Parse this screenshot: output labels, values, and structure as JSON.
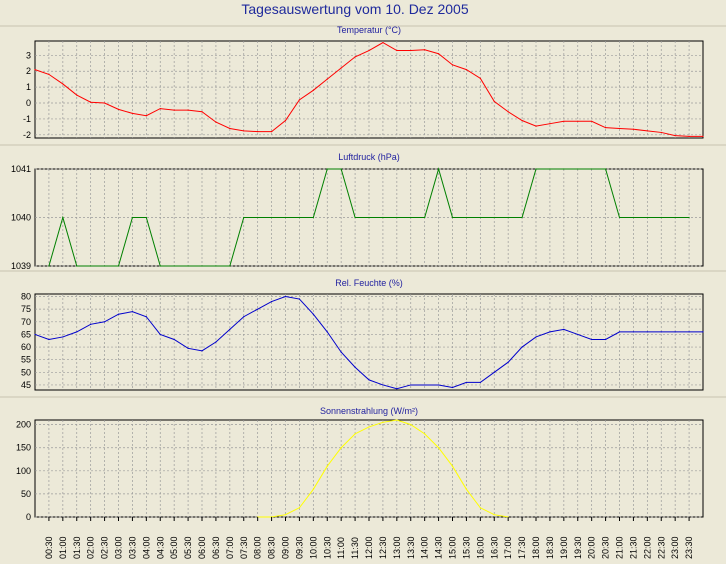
{
  "title": "Tagesauswertung vom 10. Dez 2005",
  "time_labels": [
    "00:30",
    "01:00",
    "01:30",
    "02:00",
    "02:30",
    "03:00",
    "03:30",
    "04:00",
    "04:30",
    "05:00",
    "05:30",
    "06:00",
    "06:30",
    "07:00",
    "07:30",
    "08:00",
    "08:30",
    "09:00",
    "09:30",
    "10:00",
    "10:30",
    "11:00",
    "11:30",
    "12:00",
    "12:30",
    "13:00",
    "13:30",
    "14:00",
    "14:30",
    "15:00",
    "15:30",
    "16:00",
    "16:30",
    "17:00",
    "17:30",
    "18:00",
    "18:30",
    "19:00",
    "19:30",
    "20:00",
    "20:30",
    "21:00",
    "21:30",
    "22:00",
    "22:30",
    "23:00",
    "23:30"
  ],
  "chart_data": [
    {
      "type": "line",
      "title": "Temperatur (°C)",
      "ylim": [
        -2.2,
        3.9
      ],
      "yticks": [
        3,
        2,
        1,
        0,
        -1,
        -2
      ],
      "color": "#ff0000",
      "x": [
        "00:00",
        "00:30",
        "01:00",
        "01:30",
        "02:00",
        "02:30",
        "03:00",
        "03:30",
        "04:00",
        "04:30",
        "05:00",
        "05:30",
        "06:00",
        "06:30",
        "07:00",
        "07:30",
        "08:00",
        "08:30",
        "09:00",
        "09:30",
        "10:00",
        "10:30",
        "11:00",
        "11:30",
        "12:00",
        "12:30",
        "13:00",
        "13:30",
        "14:00",
        "14:30",
        "15:00",
        "15:30",
        "16:00",
        "16:30",
        "17:00",
        "17:30",
        "18:00",
        "18:30",
        "19:00",
        "19:30",
        "20:00",
        "20:30",
        "21:00",
        "21:30",
        "22:00",
        "22:30",
        "23:00",
        "23:30",
        "24:00"
      ],
      "values": [
        2.1,
        1.8,
        1.2,
        0.5,
        0.05,
        0.0,
        -0.4,
        -0.65,
        -0.8,
        -0.35,
        -0.45,
        -0.45,
        -0.55,
        -1.2,
        -1.6,
        -1.75,
        -1.8,
        -1.8,
        -1.1,
        0.2,
        0.8,
        1.5,
        2.2,
        2.9,
        3.3,
        3.8,
        3.3,
        3.3,
        3.35,
        3.1,
        2.4,
        2.1,
        1.55,
        0.1,
        -0.55,
        -1.1,
        -1.45,
        -1.3,
        -1.15,
        -1.15,
        -1.15,
        -1.55,
        -1.6,
        -1.65,
        -1.75,
        -1.85,
        -2.05,
        -2.1,
        -2.1
      ]
    },
    {
      "type": "line",
      "title": "Luftdruck (hPa)",
      "ylim": [
        1039,
        1041
      ],
      "yticks": [
        1041,
        1040,
        1039
      ],
      "color": "#008000",
      "x": [
        "00:30",
        "01:00",
        "01:30",
        "02:00",
        "02:30",
        "03:00",
        "03:30",
        "04:00",
        "04:30",
        "05:00",
        "05:30",
        "06:00",
        "06:30",
        "07:00",
        "07:30",
        "08:00",
        "08:30",
        "09:00",
        "09:30",
        "10:00",
        "10:30",
        "11:00",
        "11:30",
        "12:00",
        "12:30",
        "13:00",
        "13:30",
        "14:00",
        "14:30",
        "15:00",
        "15:30",
        "16:00",
        "16:30",
        "17:00",
        "17:30",
        "18:00",
        "18:30",
        "19:00",
        "19:30",
        "20:00",
        "20:30",
        "21:00",
        "21:30",
        "22:00",
        "22:30",
        "23:00",
        "23:30"
      ],
      "values": [
        1039,
        1040,
        1039,
        1039,
        1039,
        1039,
        1040,
        1040,
        1039,
        1039,
        1039,
        1039,
        1039,
        1039,
        1040,
        1040,
        1040,
        1040,
        1040,
        1040,
        1041,
        1041,
        1040,
        1040,
        1040,
        1040,
        1040,
        1040,
        1041,
        1040,
        1040,
        1040,
        1040,
        1040,
        1040,
        1041,
        1041,
        1041,
        1041,
        1041,
        1041,
        1040,
        1040,
        1040,
        1040,
        1040,
        1040
      ]
    },
    {
      "type": "line",
      "title": "Rel. Feuchte (%)",
      "ylim": [
        43,
        81
      ],
      "yticks": [
        80,
        75,
        70,
        65,
        60,
        55,
        50,
        45
      ],
      "color": "#0000cc",
      "x": [
        "00:00",
        "00:30",
        "01:00",
        "01:30",
        "02:00",
        "02:30",
        "03:00",
        "03:30",
        "04:00",
        "04:30",
        "05:00",
        "05:30",
        "06:00",
        "06:30",
        "07:00",
        "07:30",
        "08:00",
        "08:30",
        "09:00",
        "09:30",
        "10:00",
        "10:30",
        "11:00",
        "11:30",
        "12:00",
        "12:30",
        "13:00",
        "13:30",
        "14:00",
        "14:30",
        "15:00",
        "15:30",
        "16:00",
        "16:30",
        "17:00",
        "17:30",
        "18:00",
        "18:30",
        "19:00",
        "19:30",
        "20:00",
        "20:30",
        "21:00",
        "21:30",
        "22:00",
        "22:30",
        "23:00",
        "23:30",
        "24:00"
      ],
      "values": [
        65,
        63,
        64,
        66,
        69,
        70,
        73,
        74,
        72,
        65,
        63,
        59.5,
        58.5,
        62,
        67,
        72,
        75,
        78,
        80,
        79,
        73,
        66,
        58,
        52,
        47,
        45,
        43.5,
        45,
        45,
        45,
        44,
        46,
        46,
        50,
        54,
        60,
        64,
        66,
        67,
        65,
        63,
        63,
        66,
        66,
        66,
        66,
        66,
        66,
        66
      ]
    },
    {
      "type": "line",
      "title": "Sonnenstrahlung (W/m²)",
      "ylim": [
        0,
        210
      ],
      "yticks": [
        200,
        150,
        100,
        50,
        0
      ],
      "color": "#ffff00",
      "x": [
        "08:00",
        "08:30",
        "09:00",
        "09:30",
        "10:00",
        "10:30",
        "11:00",
        "11:30",
        "12:00",
        "12:30",
        "13:00",
        "13:30",
        "14:00",
        "14:30",
        "15:00",
        "15:30",
        "16:00",
        "16:30",
        "17:00"
      ],
      "values": [
        0,
        0,
        5,
        20,
        60,
        110,
        150,
        180,
        195,
        205,
        210,
        200,
        180,
        150,
        110,
        60,
        20,
        5,
        0
      ]
    }
  ]
}
